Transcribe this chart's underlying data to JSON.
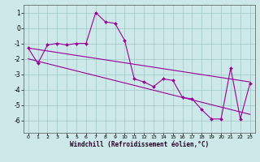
{
  "xlabel": "Windchill (Refroidissement éolien,°C)",
  "bg_color": "#cde8e8",
  "grid_color": "#a0c8c8",
  "line_color": "#990099",
  "xlim": [
    -0.5,
    23.5
  ],
  "ylim": [
    -6.8,
    1.5
  ],
  "yticks": [
    1,
    0,
    -1,
    -2,
    -3,
    -4,
    -5,
    -6
  ],
  "xticks": [
    0,
    1,
    2,
    3,
    4,
    5,
    6,
    7,
    8,
    9,
    10,
    11,
    12,
    13,
    14,
    15,
    16,
    17,
    18,
    19,
    20,
    21,
    22,
    23
  ],
  "main_x": [
    0,
    1,
    2,
    3,
    4,
    5,
    6,
    7,
    8,
    9,
    10,
    11,
    12,
    13,
    14,
    15,
    16,
    17,
    18,
    19,
    20,
    21,
    22,
    23
  ],
  "main_y": [
    -1.3,
    -2.3,
    -1.1,
    -1.0,
    -1.1,
    -1.0,
    -1.0,
    1.0,
    0.4,
    0.3,
    -0.8,
    -3.3,
    -3.5,
    -3.8,
    -3.3,
    -3.4,
    -4.5,
    -4.6,
    -5.3,
    -5.9,
    -5.9,
    -2.6,
    -5.9,
    -3.6
  ],
  "trend1_x": [
    0,
    23
  ],
  "trend1_y": [
    -1.3,
    -3.5
  ],
  "trend2_x": [
    0,
    23
  ],
  "trend2_y": [
    -2.0,
    -5.6
  ]
}
